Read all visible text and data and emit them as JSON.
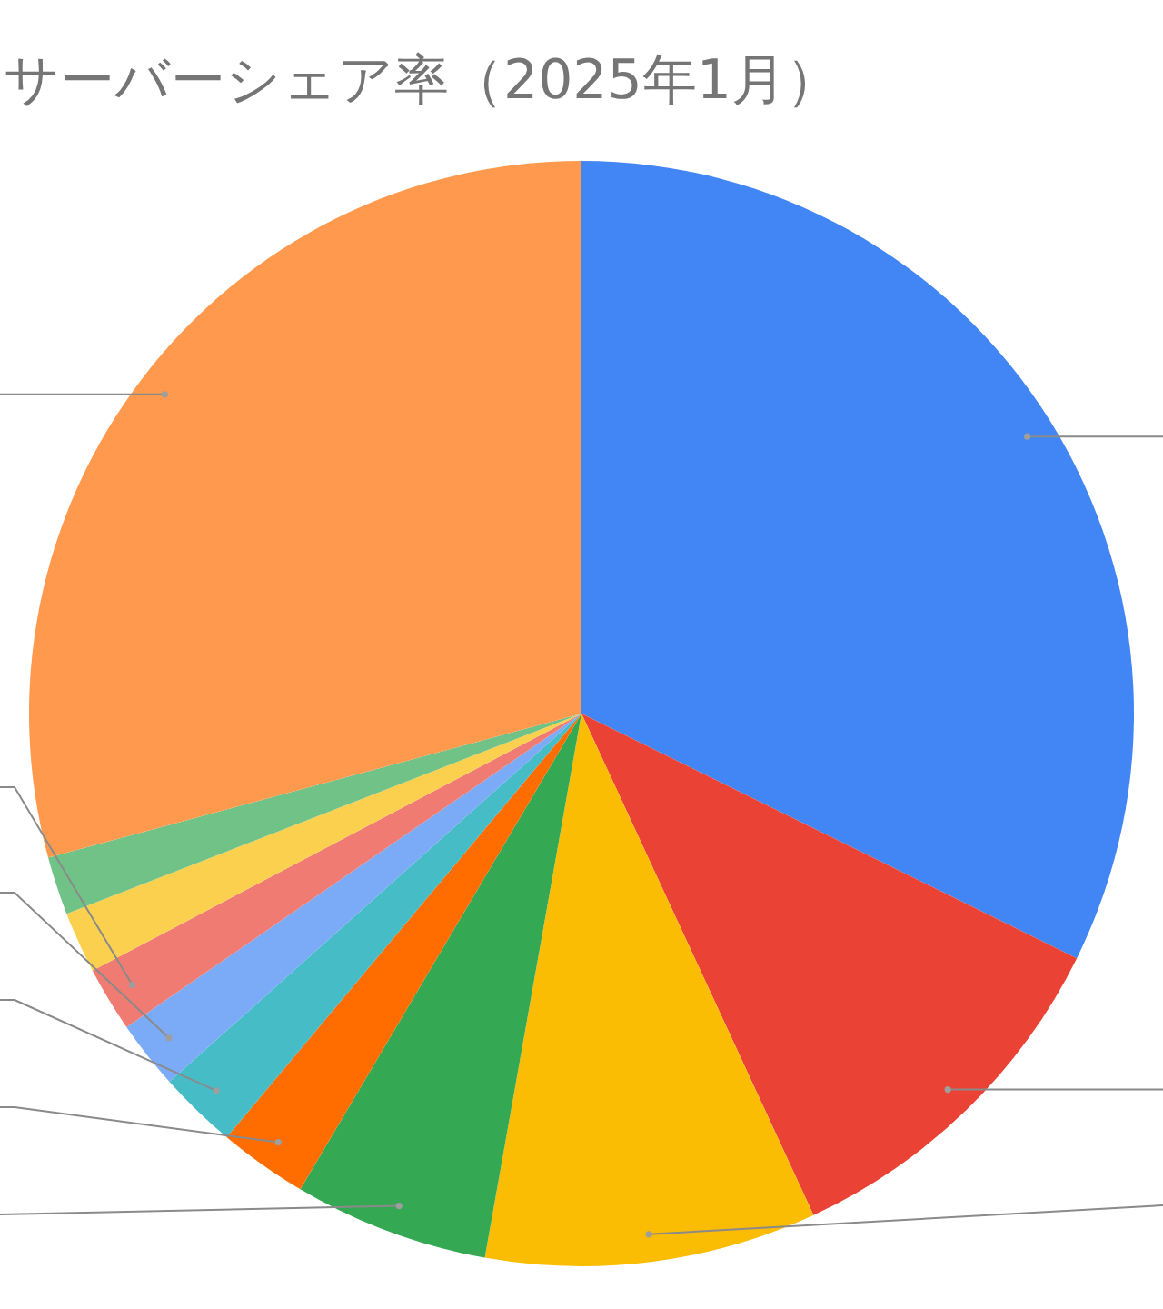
{
  "chart_data": {
    "type": "pie",
    "title": "サーバーシェア率（2025年1月）",
    "categories": [
      null,
      null,
      null,
      null,
      null,
      null,
      null,
      null,
      null,
      null,
      null
    ],
    "values": [
      32.3,
      10.8,
      9.7,
      5.7,
      2.6,
      2.3,
      2.0,
      1.9,
      1.8,
      1.7,
      29.2
    ],
    "colors": [
      "#4285f4",
      "#ea4335",
      "#fbbc04",
      "#34a853",
      "#ff6d01",
      "#46bdc6",
      "#7baaf7",
      "#f07b72",
      "#fcd04f",
      "#71c287",
      "#ff994d"
    ],
    "legend": false
  }
}
